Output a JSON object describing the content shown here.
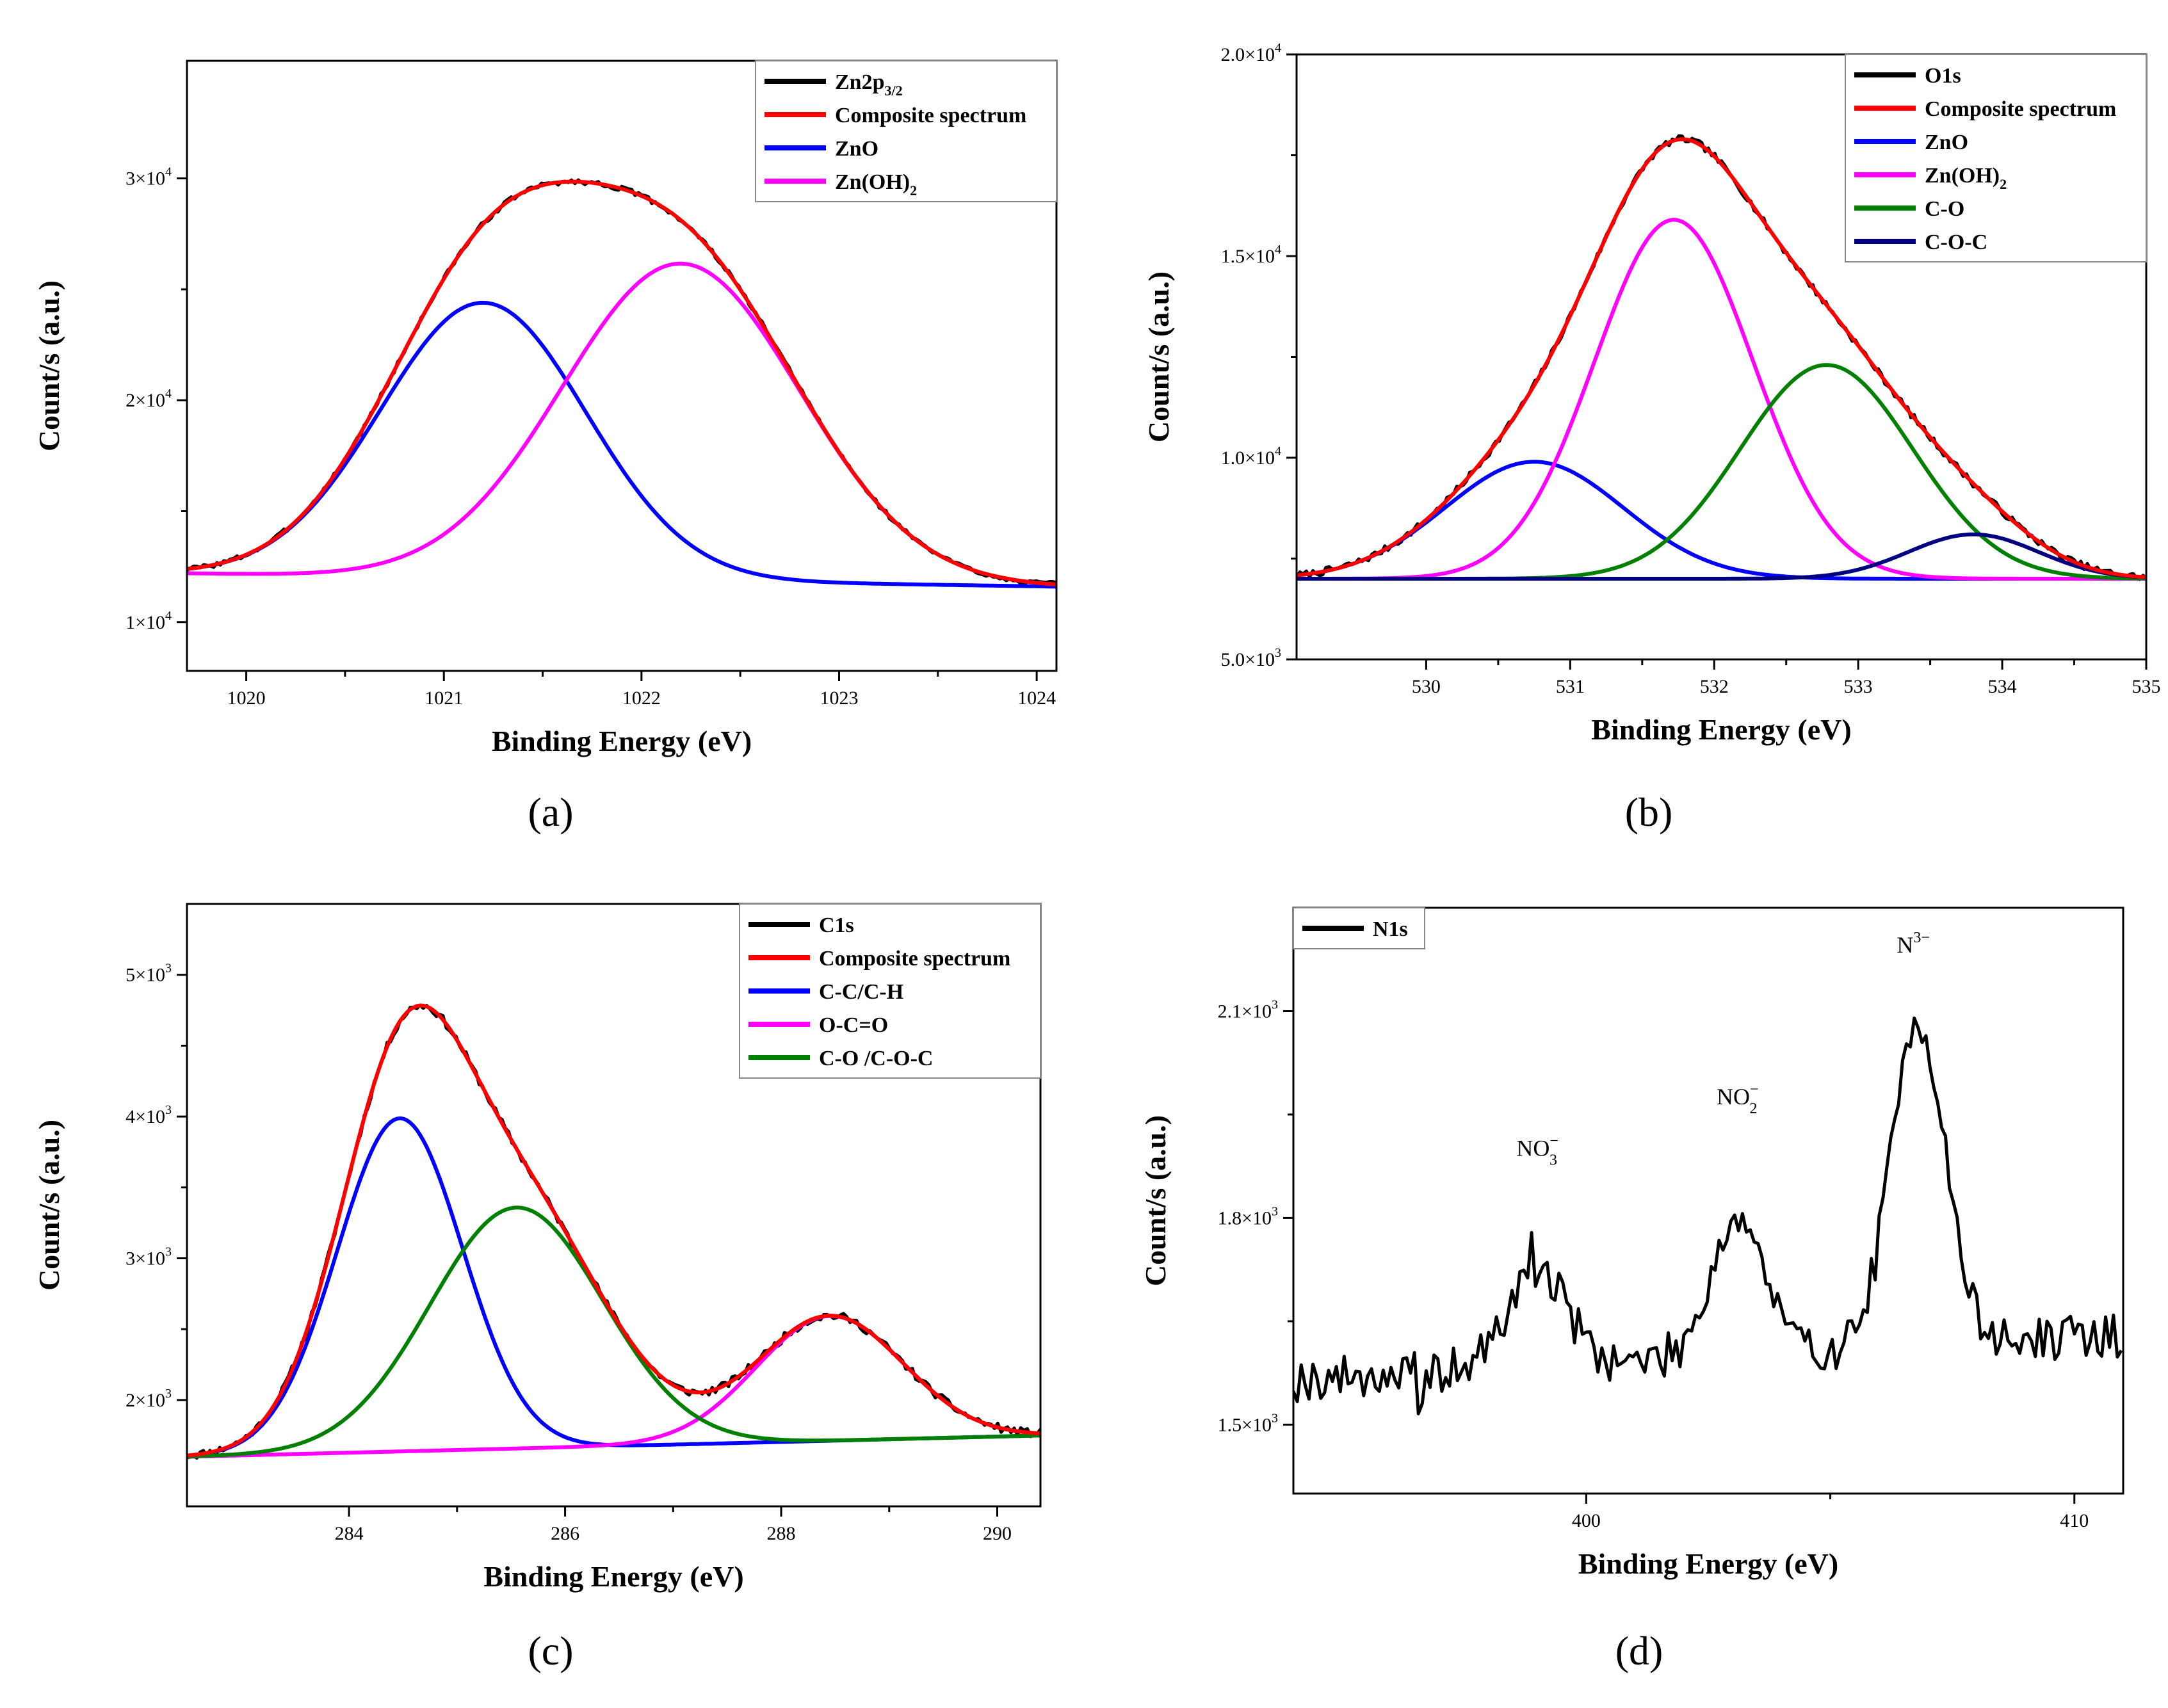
{
  "figure": {
    "panels_order": [
      "a",
      "b",
      "c",
      "d"
    ]
  },
  "chart_data": [
    {
      "id": "a",
      "type": "line",
      "caption": "(a)",
      "xlabel": "Binding Energy (eV)",
      "ylabel": "Count/s (a.u.)",
      "xlim": [
        1019.7,
        1024.1
      ],
      "ylim": [
        7800,
        35300
      ],
      "xticks": [
        1020,
        1021,
        1022,
        1023,
        1024
      ],
      "xtick_labels": [
        "1020",
        "1021",
        "1022",
        "1023",
        "1024"
      ],
      "yticks": [
        10000,
        20000,
        30000
      ],
      "ytick_mantissa": [
        "1×10",
        "2×10",
        "3×10"
      ],
      "ytick_exponent": [
        "4",
        "4",
        "4"
      ],
      "baseline": {
        "start": 12200,
        "end": 11600
      },
      "legend": {
        "position": "top-right",
        "entries": [
          {
            "label": "Zn2p",
            "sub": "3/2",
            "color": "#000000"
          },
          {
            "label": "Composite spectrum",
            "sub": "",
            "color": "#ff0000"
          },
          {
            "label": "ZnO",
            "sub": "",
            "color": "#0000ff"
          },
          {
            "label": "Zn(OH)",
            "sub": "2",
            "color": "#ff00ff"
          }
        ]
      },
      "series": [
        {
          "name": "Zn2p3/2",
          "kind": "raw",
          "color": "#000000",
          "noise": 120,
          "seed": 3
        },
        {
          "name": "Composite spectrum",
          "kind": "sum",
          "color": "#ff0000"
        },
        {
          "name": "ZnO",
          "kind": "gauss",
          "center": 1021.2,
          "amplitude": 12400,
          "sigma": 0.52,
          "color": "#0000ff"
        },
        {
          "name": "Zn(OH)2",
          "kind": "gauss",
          "center": 1022.2,
          "amplitude": 14300,
          "sigma": 0.6,
          "color": "#ff00ff"
        }
      ],
      "annotations": []
    },
    {
      "id": "b",
      "type": "line",
      "caption": "(b)",
      "xlabel": "Binding Energy (eV)",
      "ylabel": "Count/s (a.u.)",
      "xlim": [
        529.1,
        535.0
      ],
      "ylim": [
        5000,
        20000
      ],
      "xticks": [
        530,
        531,
        532,
        533,
        534,
        535
      ],
      "xtick_labels": [
        "530",
        "531",
        "532",
        "533",
        "534",
        "535"
      ],
      "yticks": [
        5000,
        10000,
        15000,
        20000
      ],
      "ytick_mantissa": [
        "5.0×10",
        "1.0×10",
        "1.5×10",
        "2.0×10"
      ],
      "ytick_exponent": [
        "3",
        "4",
        "4",
        "4"
      ],
      "baseline": {
        "start": 7000,
        "end": 7000
      },
      "legend": {
        "position": "top-right",
        "entries": [
          {
            "label": "O1s",
            "sub": "",
            "color": "#000000"
          },
          {
            "label": "Composite spectrum",
            "sub": "",
            "color": "#ff0000"
          },
          {
            "label": "ZnO",
            "sub": "",
            "color": "#0000ff"
          },
          {
            "label": "Zn(OH)",
            "sub": "2",
            "color": "#ff00ff"
          },
          {
            "label": "C-O",
            "sub": "",
            "color": "#008000"
          },
          {
            "label": "C-O-C",
            "sub": "",
            "color": "#000080"
          }
        ]
      },
      "series": [
        {
          "name": "O1s",
          "kind": "raw",
          "color": "#000000",
          "noise": 90,
          "seed": 7
        },
        {
          "name": "Composite spectrum",
          "kind": "sum",
          "color": "#ff0000"
        },
        {
          "name": "ZnO",
          "kind": "gauss",
          "center": 530.75,
          "amplitude": 2900,
          "sigma": 0.62,
          "color": "#0000ff"
        },
        {
          "name": "Zn(OH)2",
          "kind": "gauss",
          "center": 531.72,
          "amplitude": 8900,
          "sigma": 0.55,
          "color": "#ff00ff"
        },
        {
          "name": "C-O",
          "kind": "gauss",
          "center": 532.78,
          "amplitude": 5300,
          "sigma": 0.6,
          "color": "#008000"
        },
        {
          "name": "C-O-C",
          "kind": "gauss",
          "center": 533.8,
          "amplitude": 1100,
          "sigma": 0.45,
          "color": "#000080"
        }
      ],
      "annotations": []
    },
    {
      "id": "c",
      "type": "line",
      "caption": "(c)",
      "xlabel": "Binding Energy (eV)",
      "ylabel": "Count/s (a.u.)",
      "xlim": [
        282.5,
        290.4
      ],
      "ylim": [
        1250,
        5500
      ],
      "xticks": [
        284,
        286,
        288,
        290
      ],
      "xtick_labels": [
        "284",
        "286",
        "288",
        "290"
      ],
      "yticks": [
        2000,
        3000,
        4000,
        5000
      ],
      "ytick_mantissa": [
        "2×10",
        "3×10",
        "4×10",
        "5×10"
      ],
      "ytick_exponent": [
        "3",
        "3",
        "3",
        "3"
      ],
      "baseline": {
        "start": 1600,
        "end": 1750
      },
      "legend": {
        "position": "top-right",
        "entries": [
          {
            "label": "C1s",
            "sub": "",
            "color": "#000000"
          },
          {
            "label": "Composite spectrum",
            "sub": "",
            "color": "#ff0000"
          },
          {
            "label": "C-C/C-H",
            "sub": "",
            "color": "#0000ff"
          },
          {
            "label": "O-C=O",
            "sub": "",
            "color": "#ff00ff"
          },
          {
            "label": "C-O /C-O-C",
            "sub": "",
            "color": "#008000"
          }
        ]
      },
      "series": [
        {
          "name": "C1s",
          "kind": "raw",
          "color": "#000000",
          "noise": 30,
          "seed": 11
        },
        {
          "name": "Composite spectrum",
          "kind": "sum",
          "color": "#ff0000"
        },
        {
          "name": "C-C/C-H",
          "kind": "gauss",
          "center": 284.47,
          "amplitude": 2350,
          "sigma": 0.58,
          "color": "#0000ff"
        },
        {
          "name": "O-C=O",
          "kind": "gauss",
          "center": 288.45,
          "amplitude": 880,
          "sigma": 0.68,
          "color": "#ff00ff"
        },
        {
          "name": "C-O /C-O-C",
          "kind": "gauss",
          "center": 285.55,
          "amplitude": 1700,
          "sigma": 0.8,
          "color": "#008000"
        }
      ],
      "annotations": []
    },
    {
      "id": "d",
      "type": "line",
      "caption": "(d)",
      "xlabel": "Binding Energy (eV)",
      "ylabel": "Count/s (a.u.)",
      "xlim": [
        394.0,
        411.0
      ],
      "ylim": [
        1400,
        2250
      ],
      "xticks": [
        400,
        410
      ],
      "xtick_labels": [
        "400",
        "410"
      ],
      "yticks": [
        1500,
        1800,
        2100
      ],
      "ytick_mantissa": [
        "1.5×10",
        "1.8×10",
        "2.1×10"
      ],
      "ytick_exponent": [
        "3",
        "3",
        "3"
      ],
      "legend": {
        "position": "top-left",
        "entries": [
          {
            "label": "N1s",
            "sub": "",
            "color": "#000000"
          }
        ]
      },
      "series": [
        {
          "name": "N1s",
          "kind": "noisy",
          "color": "#000000",
          "base_start": 1565,
          "base_end": 1630,
          "noise": 32,
          "step": 0.08,
          "seed": 19,
          "peaks": [
            {
              "center": 399.0,
              "amplitude": 140,
              "sigma": 0.6
            },
            {
              "center": 403.1,
              "amplitude": 200,
              "sigma": 0.55
            },
            {
              "center": 406.8,
              "amplitude": 470,
              "sigma": 0.55
            }
          ],
          "spikes": [
            {
              "x": 396.6,
              "dy": -70
            },
            {
              "x": 398.9,
              "dy": 60
            },
            {
              "x": 406.7,
              "dy": 40
            }
          ]
        }
      ],
      "annotations": [
        {
          "text": "NO",
          "sup": "−",
          "sub": "3",
          "x": 399.0,
          "y": 1890
        },
        {
          "text": "NO",
          "sup": "−",
          "sub": "2",
          "x": 403.1,
          "y": 1965
        },
        {
          "text": "N",
          "sup": "3−",
          "sub": "",
          "x": 406.7,
          "y": 2185
        }
      ]
    }
  ]
}
